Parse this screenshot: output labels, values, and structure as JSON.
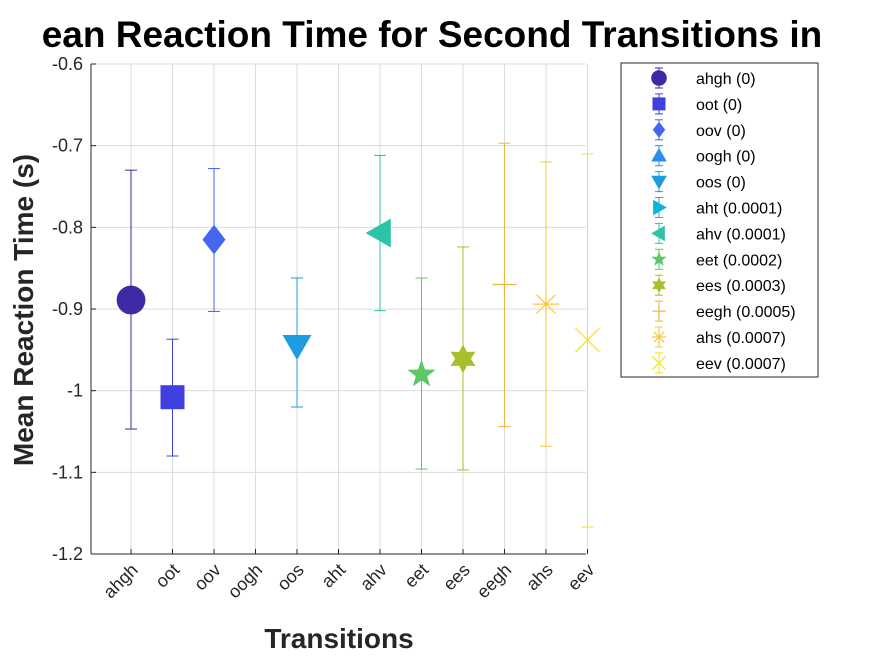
{
  "chart_data": {
    "type": "scatter",
    "title": "ean Reaction Time for Second Transitions in",
    "xlabel": "Transitions",
    "ylabel": "Mean Reaction Time (s)",
    "ylim": [
      -1.2,
      -0.6
    ],
    "yticks": [
      "-0.6",
      "-0.7",
      "-0.8",
      "-0.9",
      "-1",
      "-1.1",
      "-1.2"
    ],
    "grid": true,
    "legend_position": "outside-right",
    "categories": [
      "ahgh",
      "oot",
      "oov",
      "oogh",
      "oos",
      "aht",
      "ahv",
      "eet",
      "ees",
      "eegh",
      "ahs",
      "eev"
    ],
    "series": [
      {
        "name": "ahgh (0)",
        "x": "ahgh",
        "y": -0.889,
        "err_low": -1.047,
        "err_high": -0.73,
        "marker": "circle",
        "color": "#3f2aa6"
      },
      {
        "name": "oot (0)",
        "x": "oot",
        "y": -1.008,
        "err_low": -1.08,
        "err_high": -0.937,
        "marker": "square",
        "color": "#4040e0"
      },
      {
        "name": "oov (0)",
        "x": "oov",
        "y": -0.815,
        "err_low": -0.903,
        "err_high": -0.728,
        "marker": "diamond",
        "color": "#4666f0"
      },
      {
        "name": "oogh (0)",
        "x": "oogh",
        "y": null,
        "err_low": null,
        "err_high": null,
        "marker": "triangle-up",
        "color": "#2c8cf0"
      },
      {
        "name": "oos (0)",
        "x": "oos",
        "y": -0.945,
        "err_low": -1.02,
        "err_high": -0.862,
        "marker": "triangle-down",
        "color": "#1d9de0"
      },
      {
        "name": "aht (0.0001)",
        "x": "aht",
        "y": null,
        "err_low": null,
        "err_high": null,
        "marker": "triangle-right",
        "color": "#0ab4d8"
      },
      {
        "name": "ahv (0.0001)",
        "x": "ahv",
        "y": -0.807,
        "err_low": -0.902,
        "err_high": -0.712,
        "marker": "triangle-left",
        "color": "#2cc3a8"
      },
      {
        "name": "eet (0.0002)",
        "x": "eet",
        "y": -0.98,
        "err_low": -1.096,
        "err_high": -0.862,
        "marker": "pentagram",
        "color": "#5cc864"
      },
      {
        "name": "ees (0.0003)",
        "x": "ees",
        "y": -0.961,
        "err_low": -1.097,
        "err_high": -0.824,
        "marker": "hexagram",
        "color": "#a6bf2a"
      },
      {
        "name": "eegh (0.0005)",
        "x": "eegh",
        "y": -0.87,
        "err_low": -1.044,
        "err_high": -0.697,
        "marker": "plus",
        "color": "#eab83a"
      },
      {
        "name": "ahs (0.0007)",
        "x": "ahs",
        "y": -0.894,
        "err_low": -1.068,
        "err_high": -0.72,
        "marker": "asterisk",
        "color": "#f8c840"
      },
      {
        "name": "eev (0.0007)",
        "x": "eev",
        "y": -0.938,
        "err_low": -1.167,
        "err_high": -0.71,
        "marker": "x",
        "color": "#f6e21c"
      }
    ]
  }
}
